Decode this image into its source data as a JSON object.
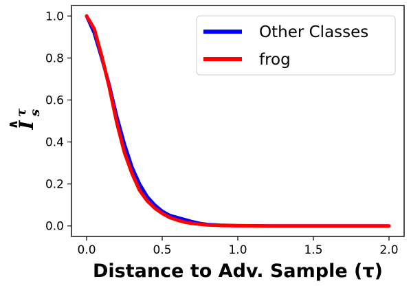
{
  "chart_data": {
    "type": "line",
    "title": "",
    "xlabel": "Distance to Adv. Sample (τ)",
    "ylabel": {
      "base": "I",
      "hat": "∧",
      "subscript": "s",
      "superscript": "τ"
    },
    "xlim": [
      -0.1,
      2.1
    ],
    "ylim": [
      -0.05,
      1.05
    ],
    "xticks": [
      0.0,
      0.5,
      1.0,
      1.5,
      2.0
    ],
    "xtick_labels": [
      "0.0",
      "0.5",
      "1.0",
      "1.5",
      "2.0"
    ],
    "yticks": [
      0.0,
      0.2,
      0.4,
      0.6,
      0.8,
      1.0
    ],
    "ytick_labels": [
      "0.0",
      "0.2",
      "0.4",
      "0.6",
      "0.8",
      "1.0"
    ],
    "grid": false,
    "legend_position": "top-right",
    "series": [
      {
        "name": "Other Classes",
        "color": "#0000ff",
        "x": [
          0.0,
          0.05,
          0.1,
          0.15,
          0.2,
          0.25,
          0.3,
          0.35,
          0.4,
          0.45,
          0.5,
          0.55,
          0.6,
          0.65,
          0.7,
          0.75,
          0.8,
          0.9,
          1.0,
          1.2,
          1.5,
          2.0
        ],
        "y": [
          1.0,
          0.92,
          0.8,
          0.67,
          0.52,
          0.39,
          0.28,
          0.2,
          0.14,
          0.1,
          0.07,
          0.05,
          0.04,
          0.03,
          0.02,
          0.012,
          0.007,
          0.003,
          0.001,
          0.0,
          0.0,
          0.0
        ]
      },
      {
        "name": "frog",
        "color": "#ff0000",
        "x": [
          0.0,
          0.05,
          0.1,
          0.15,
          0.2,
          0.25,
          0.3,
          0.35,
          0.4,
          0.45,
          0.5,
          0.55,
          0.6,
          0.65,
          0.7,
          0.75,
          0.8,
          0.9,
          1.0,
          1.2,
          1.5,
          2.0
        ],
        "y": [
          1.0,
          0.94,
          0.81,
          0.66,
          0.49,
          0.35,
          0.25,
          0.17,
          0.12,
          0.085,
          0.06,
          0.04,
          0.028,
          0.018,
          0.012,
          0.008,
          0.005,
          0.002,
          0.001,
          0.0,
          0.0,
          0.0
        ]
      }
    ]
  }
}
